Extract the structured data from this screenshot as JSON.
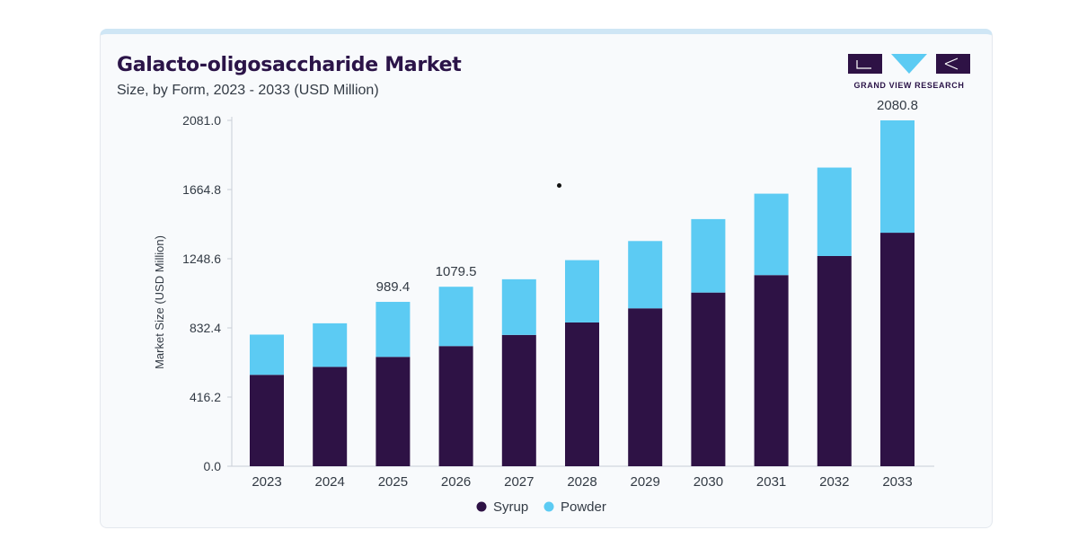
{
  "header": {
    "title": "Galacto-oligosaccharide Market",
    "subtitle": "Size, by Form, 2023 - 2033 (USD Million)"
  },
  "logo": {
    "text": "GRAND VIEW RESEARCH"
  },
  "colors": {
    "syrup": "#2e1245",
    "powder": "#5ccbf3",
    "accent": "#cfe6f5"
  },
  "chart_data": {
    "type": "bar",
    "stacked": true,
    "ylabel": "Market Size (USD Million)",
    "ylim": [
      0,
      2081.0
    ],
    "yticks": [
      "0.0",
      "416.2",
      "832.4",
      "1248.6",
      "1664.8",
      "2081.0"
    ],
    "categories": [
      "2023",
      "2024",
      "2025",
      "2026",
      "2027",
      "2028",
      "2029",
      "2030",
      "2031",
      "2032",
      "2033"
    ],
    "series": [
      {
        "name": "Syrup",
        "values": [
          550,
          598,
          658,
          723,
          790,
          865,
          950,
          1045,
          1150,
          1265,
          1405
        ]
      },
      {
        "name": "Powder",
        "values": [
          242,
          262,
          331,
          357,
          335,
          375,
          405,
          442,
          490,
          532,
          676
        ]
      }
    ],
    "total_labels": [
      {
        "category": "2025",
        "text": "989.4"
      },
      {
        "category": "2026",
        "text": "1079.5"
      },
      {
        "category": "2033",
        "text": "2080.8"
      }
    ],
    "legend_position": "bottom",
    "grid": false
  }
}
